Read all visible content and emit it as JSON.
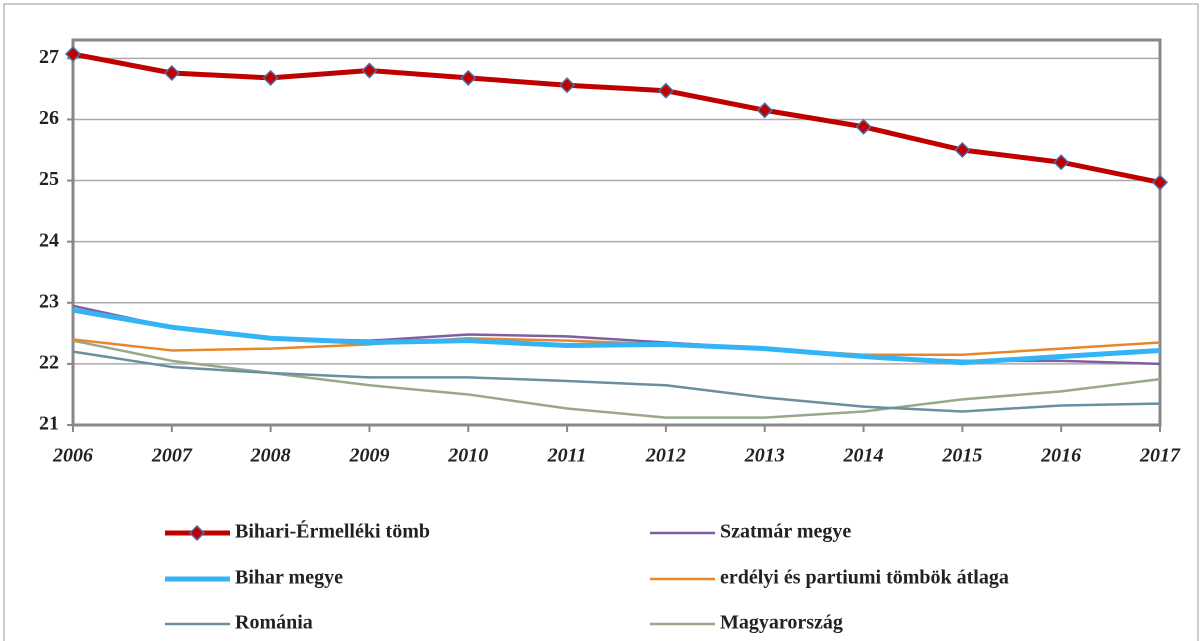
{
  "chart_data": {
    "type": "line",
    "x": [
      2006,
      2007,
      2008,
      2009,
      2010,
      2011,
      2012,
      2013,
      2014,
      2015,
      2016,
      2017
    ],
    "xlim": [
      2006,
      2017
    ],
    "xticks": [
      2006,
      2007,
      2008,
      2009,
      2010,
      2011,
      2012,
      2013,
      2014,
      2015,
      2016,
      2017
    ],
    "ylim": [
      21,
      27.3
    ],
    "yticks": [
      21,
      22,
      23,
      24,
      25,
      26,
      27
    ],
    "grid": true,
    "legend": "bottom",
    "series": [
      {
        "name": "Bihari-Érmelléki tömb",
        "color": "#c00000",
        "marker": "diamond",
        "values": [
          27.07,
          26.76,
          26.68,
          26.8,
          26.68,
          26.56,
          26.47,
          26.15,
          25.88,
          25.5,
          25.3,
          24.97
        ]
      },
      {
        "name": "Szatmár megye",
        "color": "#7f5fa0",
        "values": [
          22.95,
          22.6,
          22.42,
          22.38,
          22.48,
          22.45,
          22.35,
          22.25,
          22.12,
          22.05,
          22.05,
          22.0
        ]
      },
      {
        "name": "Bihar megye",
        "color": "#33b5f5",
        "values": [
          22.88,
          22.6,
          22.42,
          22.35,
          22.38,
          22.3,
          22.32,
          22.25,
          22.12,
          22.02,
          22.12,
          22.22
        ]
      },
      {
        "name": "erdélyi és partiumi tömbök átlaga",
        "color": "#e8862a",
        "values": [
          22.4,
          22.22,
          22.25,
          22.32,
          22.42,
          22.38,
          22.32,
          22.25,
          22.15,
          22.15,
          22.25,
          22.35
        ]
      },
      {
        "name": "Románia",
        "color": "#6a8fa0",
        "values": [
          22.2,
          21.95,
          21.85,
          21.78,
          21.78,
          21.72,
          21.65,
          21.45,
          21.3,
          21.22,
          21.32,
          21.35
        ]
      },
      {
        "name": "Magyarország",
        "color": "#98a88a",
        "values": [
          22.38,
          22.05,
          21.85,
          21.65,
          21.5,
          21.27,
          21.12,
          21.12,
          21.22,
          21.42,
          21.55,
          21.75
        ]
      }
    ]
  }
}
